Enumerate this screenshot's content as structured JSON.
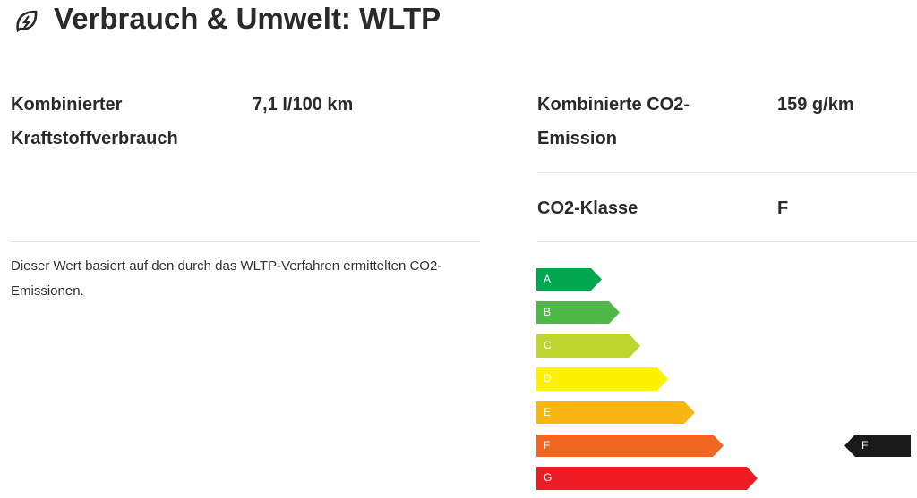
{
  "header": {
    "title": "Verbrauch & Umwelt: WLTP"
  },
  "left": {
    "label": "Kombinierter Kraftstoffverbrauch",
    "value": "7,1 l/100 km",
    "note": "Dieser Wert basiert auf den durch das WLTP-Verfahren ermittelten CO2-Emissionen."
  },
  "right": {
    "rows": [
      {
        "label": "Kombinierte CO2-Emission",
        "value": "159 g/km"
      },
      {
        "label": "CO2-Klasse",
        "value": "F"
      }
    ]
  },
  "energy_label": {
    "classes": [
      "A",
      "B",
      "C",
      "D",
      "E",
      "F",
      "G"
    ],
    "current": "F"
  }
}
